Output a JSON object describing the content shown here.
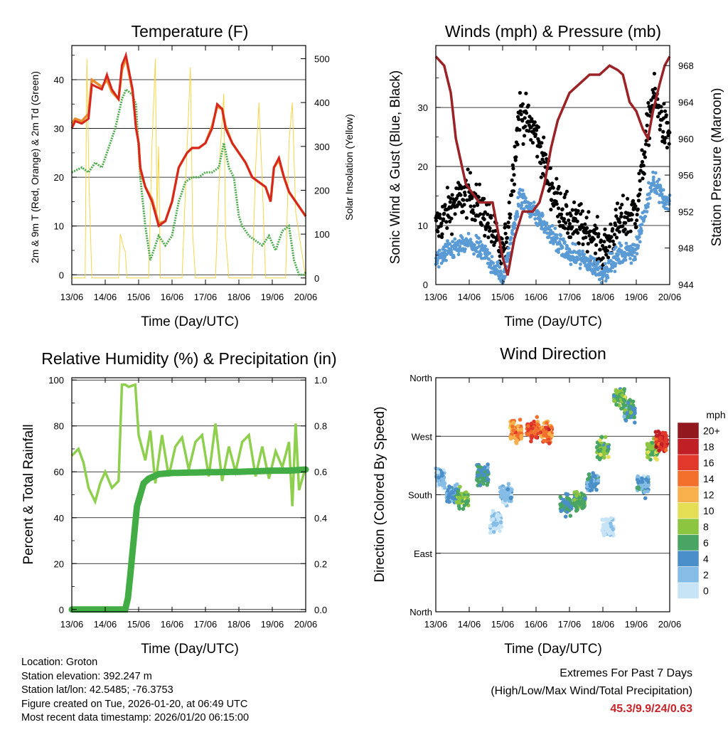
{
  "colors": {
    "temp2m": "#d7261e",
    "temp9m": "#e88a2e",
    "dew": "#4bab4b",
    "solar": "#f5d547",
    "gust": "#000000",
    "wind": "#5b9bd5",
    "pressure": "#9b2226",
    "rh": "#8fcf4e",
    "precip": "#43ad45",
    "extremes": "#c8242a"
  },
  "days": [
    "13/06",
    "14/06",
    "15/06",
    "16/06",
    "17/06",
    "18/06",
    "19/06",
    "20/06"
  ],
  "xlabel": "Time (Day/UTC)",
  "chart_data": [
    {
      "type": "line",
      "title": "Temperature (F)",
      "ylabel": "2m & 9m T (Red, Orange) & 2m Td (Green)",
      "y2label": "Solar Insolation (Yellow)",
      "ylim": [
        -2,
        47
      ],
      "y2lim": [
        -15,
        530
      ],
      "yticks": [
        0,
        10,
        20,
        30,
        40
      ],
      "y2ticks": [
        0,
        100,
        200,
        300,
        400,
        500
      ],
      "x_days": [
        0,
        7
      ],
      "series": [
        {
          "name": "2m T",
          "axis": "left",
          "x": [
            0,
            0.1,
            0.3,
            0.5,
            0.6,
            0.9,
            1.05,
            1.2,
            1.4,
            1.5,
            1.62,
            1.82,
            1.92,
            2.0,
            2.05,
            2.2,
            2.4,
            2.6,
            2.8,
            3.0,
            3.2,
            3.45,
            3.6,
            3.8,
            4.0,
            4.2,
            4.35,
            4.5,
            4.6,
            4.8,
            5.0,
            5.2,
            5.4,
            5.6,
            5.8,
            5.95,
            6.05,
            6.2,
            6.35,
            6.5,
            6.7,
            6.9,
            7.0
          ],
          "values": [
            30,
            31.5,
            31,
            32,
            39,
            38,
            41,
            38,
            36,
            43,
            45,
            38,
            30,
            27,
            22,
            18,
            15,
            10,
            11,
            15,
            22,
            25,
            26,
            26,
            27,
            30,
            35,
            34,
            30,
            27,
            25,
            23,
            20,
            19,
            18,
            15,
            22,
            24,
            20,
            17,
            15,
            13,
            12
          ]
        },
        {
          "name": "9m T",
          "axis": "left",
          "x": [
            0,
            0.1,
            0.3,
            0.5,
            0.6,
            0.9,
            1.05,
            1.2,
            1.4,
            1.5,
            1.62,
            1.82,
            1.92,
            2.0,
            2.05,
            2.2,
            2.4,
            2.6,
            2.8,
            3.0,
            3.2,
            3.45,
            3.6,
            3.8,
            4.0,
            4.2,
            4.35,
            4.5,
            4.6,
            4.8,
            5.0,
            5.2,
            5.4,
            5.6,
            5.8,
            5.95,
            6.05,
            6.2,
            6.35,
            6.5,
            6.7,
            6.9,
            7.0
          ],
          "values": [
            31,
            32,
            31.5,
            33,
            40,
            38.5,
            40,
            37.5,
            36,
            42,
            44.5,
            37.5,
            30.5,
            27,
            21.5,
            18,
            15.5,
            10.5,
            11,
            15,
            22,
            25,
            26,
            26,
            27,
            30.5,
            34.5,
            34,
            30.5,
            27,
            25,
            23,
            20,
            19,
            18,
            15,
            22,
            23.5,
            20,
            17,
            15,
            13,
            12
          ]
        },
        {
          "name": "2m Td",
          "axis": "left",
          "x": [
            0,
            0.3,
            0.5,
            0.7,
            0.9,
            1.1,
            1.3,
            1.5,
            1.62,
            1.8,
            1.92,
            2.05,
            2.2,
            2.35,
            2.6,
            2.8,
            3.0,
            3.2,
            3.4,
            3.6,
            3.8,
            4.0,
            4.2,
            4.4,
            4.55,
            4.7,
            4.85,
            5.0,
            5.1,
            5.3,
            5.5,
            5.7,
            5.9,
            6.1,
            6.3,
            6.5,
            6.65,
            6.8,
            6.95,
            7.0
          ],
          "values": [
            21,
            22,
            21,
            23,
            22,
            26,
            30,
            36,
            38,
            37,
            35,
            20,
            10,
            3,
            8,
            6,
            8,
            15,
            19,
            20,
            20,
            21,
            21,
            22,
            27,
            22,
            20,
            12,
            10,
            8,
            7,
            6,
            8,
            5,
            9,
            10,
            3,
            0,
            0,
            0.5
          ]
        },
        {
          "name": "Solar Insolation",
          "axis": "right",
          "x": [
            0,
            0.4,
            0.45,
            0.52,
            0.6,
            1.0,
            1.4,
            1.45,
            1.55,
            1.6,
            1.65,
            2.0,
            2.3,
            2.4,
            2.5,
            2.55,
            2.6,
            2.65,
            3.0,
            3.3,
            3.45,
            3.55,
            3.62,
            3.7,
            4.3,
            4.45,
            4.55,
            4.6,
            4.7,
            5.0,
            5.4,
            5.5,
            5.6,
            5.7,
            5.8,
            6.0,
            6.4,
            6.5,
            6.6,
            6.7,
            7.0
          ],
          "values": [
            0,
            0,
            500,
            200,
            0,
            0,
            0,
            100,
            70,
            60,
            0,
            0,
            0,
            300,
            500,
            150,
            300,
            0,
            0,
            0,
            300,
            480,
            100,
            0,
            0,
            300,
            420,
            100,
            0,
            0,
            0,
            250,
            400,
            220,
            0,
            0,
            0,
            310,
            400,
            150,
            0
          ]
        }
      ]
    },
    {
      "type": "line",
      "title": "Winds (mph) & Pressure (mb)",
      "ylabel": "Sonic Wind & Gust (Blue, Black)",
      "y2label": "Station Pressure (Maroon)",
      "ylim": [
        0,
        40.5
      ],
      "y2lim": [
        944,
        970.2
      ],
      "yticks": [
        0,
        10,
        20,
        30
      ],
      "y2ticks": [
        944,
        948,
        952,
        956,
        960,
        964,
        968
      ],
      "x_days": [
        0,
        7
      ],
      "series": [
        {
          "name": "Sonic Wind",
          "axis": "left",
          "x": [
            0,
            0.5,
            1.0,
            1.5,
            2.0,
            2.15,
            2.5,
            3.0,
            3.5,
            4.0,
            4.5,
            5.0,
            5.5,
            6.0,
            6.5,
            6.9
          ],
          "values": [
            4,
            6,
            7,
            5,
            1,
            4,
            15,
            12,
            8,
            5,
            4,
            2,
            5,
            6,
            18,
            14
          ]
        },
        {
          "name": "Sonic Gust",
          "axis": "left",
          "x": [
            0,
            0.5,
            1.0,
            1.5,
            2.0,
            2.15,
            2.5,
            3.0,
            3.5,
            4.0,
            4.5,
            5.0,
            5.5,
            6.0,
            6.5,
            6.9
          ],
          "values": [
            8,
            12,
            14,
            10,
            3,
            8,
            28,
            24,
            14,
            9,
            8,
            4,
            9,
            11,
            31,
            24
          ]
        },
        {
          "name": "Station Pressure",
          "axis": "right",
          "x": [
            0,
            0.25,
            0.45,
            0.6,
            0.9,
            1.3,
            1.7,
            2.0,
            2.15,
            2.35,
            2.6,
            2.9,
            3.1,
            3.25,
            3.45,
            3.65,
            4.0,
            4.3,
            4.6,
            4.9,
            5.2,
            5.45,
            5.6,
            5.8,
            6.0,
            6.2,
            6.35,
            6.5,
            6.7,
            6.85,
            7.0
          ],
          "values": [
            969,
            968,
            965,
            960,
            955,
            953,
            953,
            947,
            945,
            949,
            952,
            952,
            953,
            955,
            959,
            962,
            965,
            966,
            967,
            967,
            968,
            967.5,
            967,
            964,
            963,
            961,
            960,
            963,
            966,
            968,
            969
          ]
        }
      ]
    },
    {
      "type": "line",
      "title": "Relative Humidity (%) & Precipitation (in)",
      "ylabel": "Percent & Total Rainfall",
      "ylim": [
        -1,
        101
      ],
      "y2lim": [
        -0.01,
        1.01
      ],
      "yticks": [
        0,
        20,
        40,
        60,
        80,
        100
      ],
      "y2ticks": [
        0.0,
        0.2,
        0.4,
        0.6,
        0.8,
        1.0
      ],
      "x_days": [
        0,
        7
      ],
      "series": [
        {
          "name": "Relative Humidity",
          "axis": "left",
          "x": [
            0,
            0.2,
            0.35,
            0.5,
            0.7,
            0.85,
            1.0,
            1.2,
            1.4,
            1.5,
            1.6,
            1.7,
            1.9,
            2.0,
            2.2,
            2.35,
            2.5,
            2.7,
            2.9,
            3.1,
            3.3,
            3.5,
            3.7,
            3.9,
            4.1,
            4.3,
            4.5,
            4.7,
            4.9,
            5.1,
            5.3,
            5.5,
            5.7,
            5.9,
            6.1,
            6.3,
            6.5,
            6.6,
            6.7,
            6.8,
            7.0
          ],
          "values": [
            67,
            70,
            64,
            53,
            47,
            55,
            60,
            53,
            56,
            98,
            98,
            97,
            98,
            76,
            65,
            78,
            55,
            76,
            58,
            71,
            75,
            61,
            73,
            76,
            58,
            81,
            56,
            71,
            60,
            73,
            76,
            58,
            71,
            57,
            69,
            62,
            73,
            45,
            81,
            52,
            62
          ]
        },
        {
          "name": "Total Precipitation",
          "axis": "right",
          "x": [
            0,
            1.6,
            1.68,
            1.75,
            1.85,
            1.95,
            2.05,
            2.15,
            2.3,
            2.6,
            3.0,
            4.0,
            5.0,
            6.0,
            6.5,
            7.0
          ],
          "values": [
            0,
            0,
            0.05,
            0.15,
            0.3,
            0.45,
            0.5,
            0.55,
            0.57,
            0.59,
            0.595,
            0.598,
            0.6,
            0.605,
            0.605,
            0.61
          ]
        }
      ]
    },
    {
      "type": "scatter",
      "title": "Wind Direction",
      "ylabel": "Direction (Colored By Speed)",
      "ylim": [
        0,
        360
      ],
      "yticks": [
        0,
        90,
        180,
        270,
        360
      ],
      "yticklabels": [
        "North",
        "East",
        "South",
        "West",
        "North"
      ],
      "x_days": [
        0,
        7
      ],
      "colorbar": {
        "title": "mph",
        "labels": [
          "0",
          "2",
          "4",
          "6",
          "8",
          "10",
          "12",
          "14",
          "16",
          "18",
          "20+"
        ],
        "colors": [
          "#c6e4f5",
          "#85bde6",
          "#4a8fc9",
          "#49a563",
          "#8cc641",
          "#e4df54",
          "#f7b04b",
          "#f26f2c",
          "#e0382a",
          "#c01f26",
          "#921a1e"
        ]
      },
      "clusters": [
        {
          "x": 0.1,
          "dir": 205,
          "speed": 3
        },
        {
          "x": 0.5,
          "dir": 180,
          "speed": 5
        },
        {
          "x": 0.8,
          "dir": 175,
          "speed": 8
        },
        {
          "x": 1.4,
          "dir": 210,
          "speed": 6
        },
        {
          "x": 1.8,
          "dir": 140,
          "speed": 2
        },
        {
          "x": 2.1,
          "dir": 180,
          "speed": 3
        },
        {
          "x": 2.4,
          "dir": 275,
          "speed": 14
        },
        {
          "x": 2.9,
          "dir": 280,
          "speed": 16
        },
        {
          "x": 3.3,
          "dir": 275,
          "speed": 15
        },
        {
          "x": 3.9,
          "dir": 165,
          "speed": 6
        },
        {
          "x": 4.3,
          "dir": 170,
          "speed": 7
        },
        {
          "x": 4.7,
          "dir": 200,
          "speed": 5
        },
        {
          "x": 5.0,
          "dir": 250,
          "speed": 8
        },
        {
          "x": 5.15,
          "dir": 130,
          "speed": 1
        },
        {
          "x": 5.5,
          "dir": 330,
          "speed": 8
        },
        {
          "x": 5.8,
          "dir": 310,
          "speed": 6
        },
        {
          "x": 6.2,
          "dir": 195,
          "speed": 4
        },
        {
          "x": 6.5,
          "dir": 250,
          "speed": 9
        },
        {
          "x": 6.75,
          "dir": 262,
          "speed": 18
        }
      ]
    }
  ],
  "info": {
    "location": "Location: Groton",
    "elevation": "Station elevation: 392.247 m",
    "latlon": "Station lat/lon: 42.5485; -76.3753",
    "created": "Figure created on Tue, 2026-01-20, at 06:49 UTC",
    "recent": "Most recent data timestamp: 2026/01/20 06:15:00"
  },
  "extremes": {
    "heading": "Extremes For Past 7 Days",
    "subheading": "(High/Low/Max Wind/Total Precipitation)",
    "values": "45.3/9.9/24/0.63"
  }
}
